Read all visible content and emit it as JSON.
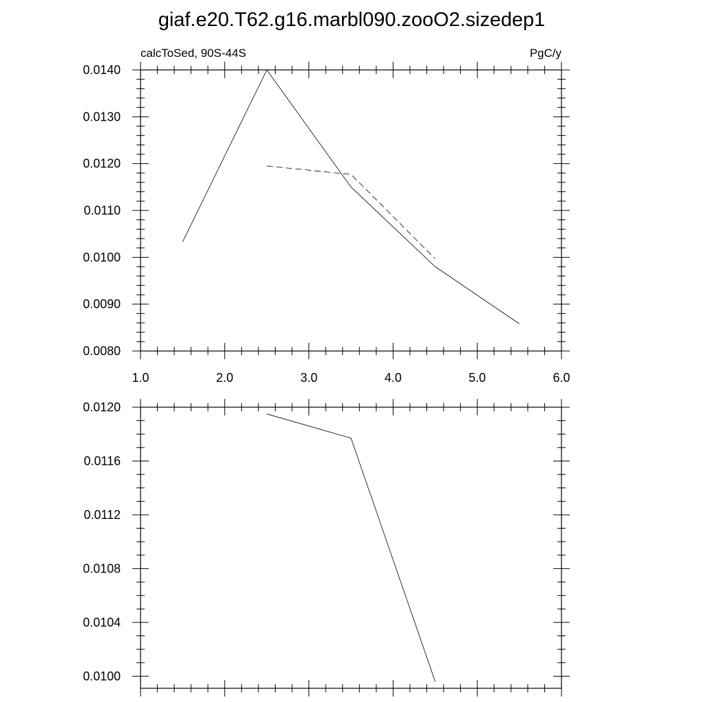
{
  "figure_title": "giaf.e20.T62.g16.marbl090.zooO2.sizedep1",
  "chart_data": [
    {
      "type": "line",
      "left_subtitle": "calcToSed, 90S-44S",
      "right_subtitle": "PgC/y",
      "xlim": [
        1.0,
        6.0
      ],
      "ylim": [
        0.008,
        0.014
      ],
      "x_ticks": [
        1.0,
        2.0,
        3.0,
        4.0,
        5.0,
        6.0
      ],
      "x_tick_labels": [
        "1.0",
        "2.0",
        "3.0",
        "4.0",
        "5.0",
        "6.0"
      ],
      "x_minor_step": 0.2,
      "y_ticks": [
        0.008,
        0.009,
        0.01,
        0.011,
        0.012,
        0.013,
        0.014
      ],
      "y_tick_labels": [
        "0.0080",
        "0.0090",
        "0.0100",
        "0.0110",
        "0.0120",
        "0.0130",
        "0.0140"
      ],
      "y_minor_step": 0.0002,
      "grid": false,
      "series": [
        {
          "style": "solid",
          "x": [
            1.5,
            2.5,
            3.5,
            4.5,
            5.5
          ],
          "y": [
            0.01033,
            0.014,
            0.0115,
            0.0098,
            0.00858
          ]
        },
        {
          "style": "dashed",
          "x": [
            2.5,
            3.5,
            4.5
          ],
          "y": [
            0.01195,
            0.01177,
            0.00997
          ]
        }
      ]
    },
    {
      "type": "line",
      "xlim": [
        1.0,
        6.0
      ],
      "ylim": [
        0.00991,
        0.012
      ],
      "x_ticks": [
        1.0,
        2.0,
        3.0,
        4.0,
        5.0,
        6.0
      ],
      "x_tick_labels": [],
      "x_minor_step": 0.2,
      "y_ticks": [
        0.01,
        0.0104,
        0.0108,
        0.0112,
        0.0116,
        0.012
      ],
      "y_tick_labels": [
        "0.0100",
        "0.0104",
        "0.0108",
        "0.0112",
        "0.0116",
        "0.0120"
      ],
      "y_minor_step": 0.0001,
      "grid": false,
      "series": [
        {
          "style": "solid",
          "x": [
            2.5,
            3.5,
            4.5
          ],
          "y": [
            0.01195,
            0.01177,
            0.00996
          ]
        }
      ]
    }
  ]
}
